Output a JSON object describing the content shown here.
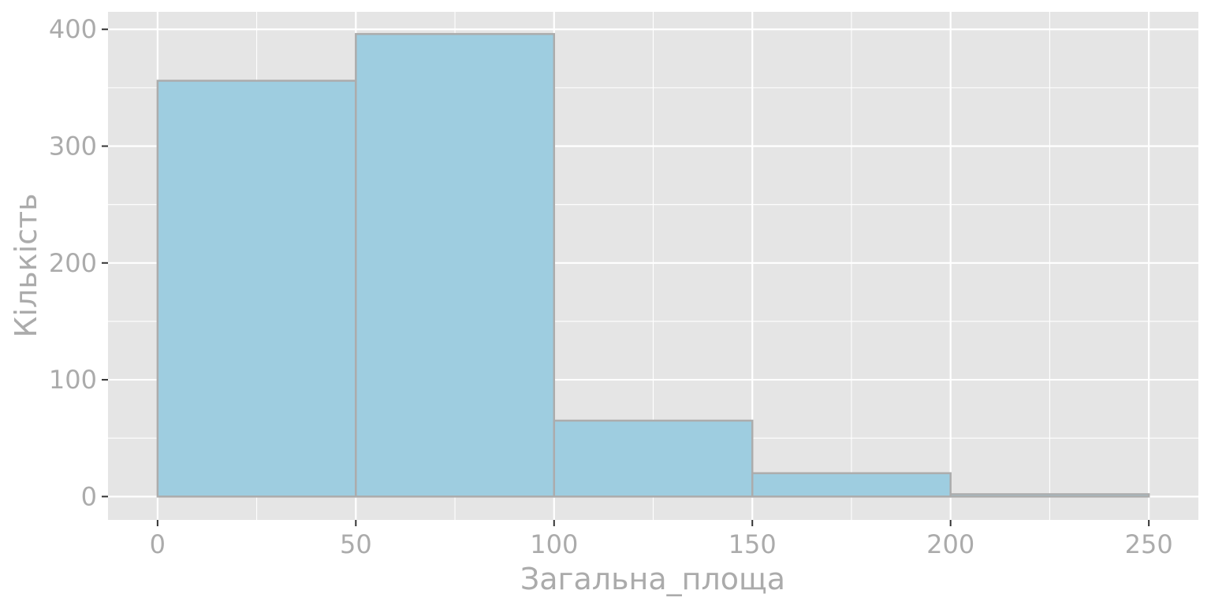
{
  "chart_data": {
    "type": "bar",
    "subtype": "histogram",
    "bins": [
      {
        "start": 0,
        "end": 50,
        "count": 356
      },
      {
        "start": 50,
        "end": 100,
        "count": 396
      },
      {
        "start": 100,
        "end": 150,
        "count": 65
      },
      {
        "start": 150,
        "end": 200,
        "count": 20
      },
      {
        "start": 200,
        "end": 250,
        "count": 2
      }
    ],
    "xlabel": "Загальна_площа",
    "ylabel": "Кількість",
    "x_ticks": [
      "0",
      "50",
      "100",
      "150",
      "200",
      "250"
    ],
    "y_ticks": [
      "0",
      "100",
      "200",
      "300",
      "400"
    ],
    "xlim": [
      -12.5,
      262.5
    ],
    "ylim": [
      -20,
      415
    ],
    "grid": true,
    "legend": "none",
    "colors": {
      "bar_fill": "#9ecde0",
      "bar_stroke": "#acacac",
      "panel_background": "#e5e5e5",
      "grid": "#ffffff",
      "text": "#ababab"
    }
  }
}
